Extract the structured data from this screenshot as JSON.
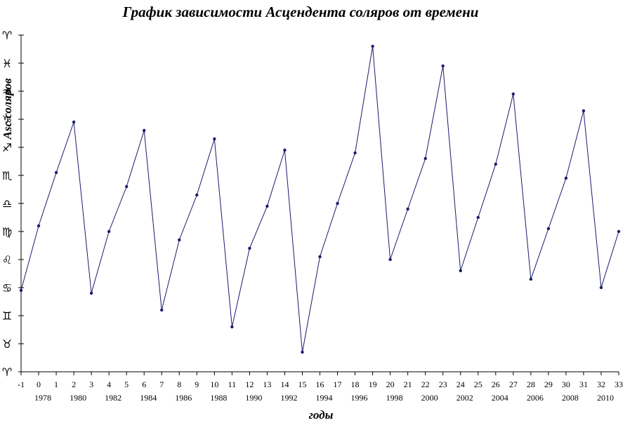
{
  "chart_data": {
    "type": "line",
    "title": "График зависимости Асцендента соляров от времени",
    "xlabel": "годы",
    "ylabel": "Asc соляров",
    "xlim": [
      -1,
      33
    ],
    "x_ticks": [
      -1,
      0,
      1,
      2,
      3,
      4,
      5,
      6,
      7,
      8,
      9,
      10,
      11,
      12,
      13,
      14,
      15,
      16,
      17,
      18,
      19,
      20,
      21,
      22,
      23,
      24,
      25,
      26,
      27,
      28,
      29,
      30,
      31,
      32,
      33
    ],
    "year_labels": [
      {
        "x": 0,
        "label": "1978"
      },
      {
        "x": 2,
        "label": "1980"
      },
      {
        "x": 4,
        "label": "1982"
      },
      {
        "x": 6,
        "label": "1984"
      },
      {
        "x": 8,
        "label": "1986"
      },
      {
        "x": 10,
        "label": "1988"
      },
      {
        "x": 12,
        "label": "1990"
      },
      {
        "x": 14,
        "label": "1992"
      },
      {
        "x": 16,
        "label": "1994"
      },
      {
        "x": 18,
        "label": "1996"
      },
      {
        "x": 20,
        "label": "1998"
      },
      {
        "x": 22,
        "label": "2000"
      },
      {
        "x": 24,
        "label": "2002"
      },
      {
        "x": 26,
        "label": "2004"
      },
      {
        "x": 28,
        "label": "2006"
      },
      {
        "x": 30,
        "label": "2008"
      },
      {
        "x": 32,
        "label": "2010"
      }
    ],
    "ylim": [
      0,
      12
    ],
    "y_tick_signs": [
      "♈",
      "♉",
      "♊",
      "♋",
      "♌",
      "♍",
      "♎",
      "♏",
      "♐",
      "♑",
      "♒",
      "♓",
      "♈"
    ],
    "grid": false,
    "line_color": "#1a1a6e",
    "series": [
      {
        "x": [
          -1,
          0,
          1,
          2,
          3,
          4,
          5,
          6,
          7,
          8,
          9,
          10,
          11,
          12,
          13,
          14,
          15,
          16,
          17,
          18,
          19,
          20,
          21,
          22,
          23,
          24,
          25,
          26,
          27,
          28,
          29,
          30,
          31,
          32,
          33
        ],
        "y": [
          2.9,
          5.2,
          7.1,
          8.9,
          2.8,
          5.0,
          6.6,
          8.6,
          2.2,
          4.7,
          6.3,
          8.3,
          1.6,
          4.4,
          5.9,
          7.9,
          0.7,
          4.1,
          6.0,
          7.8,
          11.6,
          4.0,
          5.8,
          7.6,
          10.9,
          3.6,
          5.5,
          7.4,
          9.9,
          3.3,
          5.1,
          6.9,
          9.3,
          3.0,
          5.0
        ]
      }
    ]
  }
}
